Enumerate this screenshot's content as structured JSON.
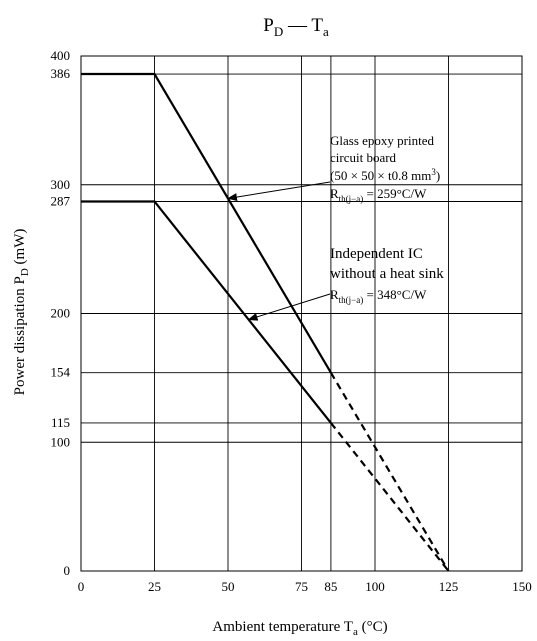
{
  "chart_data": {
    "type": "line",
    "title": "P_D — T_a",
    "xlabel": "Ambient temperature T_a (°C)",
    "ylabel": "Power dissipation P_D (mW)",
    "xlim": [
      0,
      150
    ],
    "ylim": [
      0,
      400
    ],
    "x_ticks": [
      0,
      25,
      50,
      75,
      85,
      100,
      125,
      150
    ],
    "y_ticks": [
      0,
      100,
      115,
      154,
      200,
      287,
      300,
      386,
      400
    ],
    "grid": true,
    "series": [
      {
        "name": "Glass epoxy printed circuit board",
        "solid": [
          [
            0,
            386
          ],
          [
            25,
            386
          ],
          [
            85,
            154
          ]
        ],
        "dashed": [
          [
            85,
            154
          ],
          [
            125,
            0
          ]
        ],
        "annotation": [
          "Glass epoxy printed",
          "circuit board",
          "(50 × 50 × t0.8 mm³)",
          "R_th(j−a) = 259°C/W"
        ],
        "arrow_at_x": 50
      },
      {
        "name": "Independent IC without a heat sink",
        "solid": [
          [
            0,
            287
          ],
          [
            25,
            287
          ],
          [
            85,
            115
          ]
        ],
        "dashed": [
          [
            85,
            115
          ],
          [
            125,
            0
          ]
        ],
        "annotation": [
          "Independent IC",
          "without a heat sink",
          "R_th(j−a) = 348°C/W"
        ],
        "arrow_at_x": 57
      }
    ]
  }
}
